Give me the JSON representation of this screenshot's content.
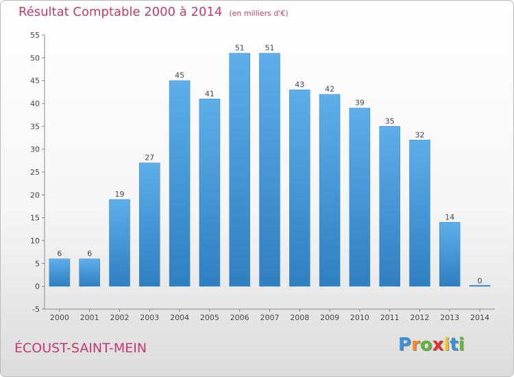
{
  "chart_data": {
    "type": "bar",
    "title": "Résultat Comptable 2000 à 2014",
    "subtitle": "(en milliers d'€)",
    "categories": [
      "2000",
      "2001",
      "2002",
      "2003",
      "2004",
      "2005",
      "2006",
      "2007",
      "2008",
      "2009",
      "2010",
      "2011",
      "2012",
      "2013",
      "2014"
    ],
    "values": [
      6,
      6,
      19,
      27,
      45,
      41,
      51,
      51,
      43,
      42,
      39,
      35,
      32,
      14,
      0
    ],
    "data_labels": [
      "6",
      "6",
      "19",
      "27",
      "45",
      "41",
      "51",
      "51",
      "43",
      "42",
      "39",
      "35",
      "32",
      "14",
      "0"
    ],
    "ylim": [
      -5,
      55
    ],
    "yticks": [
      -5,
      0,
      5,
      10,
      15,
      20,
      25,
      30,
      35,
      40,
      45,
      50,
      55
    ],
    "grid": false,
    "legend": "none",
    "bar_color_top": "#5eaeea",
    "bar_color_bottom": "#2f7fc1"
  },
  "footer": {
    "commune": "ÉCOUST-SAINT-MEIN"
  },
  "logo": {
    "letters": [
      "P",
      "r",
      "o",
      "x",
      "i",
      "t",
      "i"
    ],
    "colors": [
      "#3a8fd8",
      "#f08a1c",
      "#63b23a",
      "#e0312d",
      "#f0c21c",
      "#3a8fd8",
      "#63b23a"
    ]
  },
  "colors": {
    "title": "#c23a6e",
    "axis": "#888888",
    "text": "#444444"
  }
}
